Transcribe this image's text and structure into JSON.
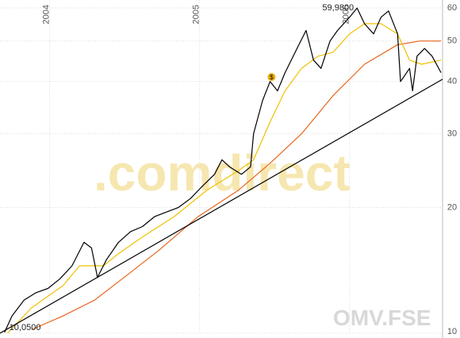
{
  "chart_data": {
    "type": "line",
    "log_y": true,
    "grid": true,
    "watermark": ".comdirect",
    "symbol": "OMV.FSE",
    "xlim": [
      2003.67,
      2006.62
    ],
    "xticks": [
      2004,
      2005,
      2006
    ],
    "ylim": [
      10,
      60
    ],
    "yticks": [
      10,
      20,
      30,
      40,
      50,
      60
    ],
    "annotations": [
      {
        "text": "59,9800",
        "x": 2006.05,
        "y": 59.98
      },
      {
        "text": "10,0500",
        "x": 2003.7,
        "y": 10.05
      },
      {
        "text": "$",
        "x": 2005.48,
        "y": 41
      }
    ],
    "series": [
      {
        "color": "#e8641a",
        "x": [
          2003.88,
          2004.09,
          2004.3,
          2004.52,
          2004.73,
          2004.99,
          2005.26,
          2005.47,
          2005.68,
          2005.89,
          2006.1,
          2006.32,
          2006.47,
          2006.61
        ],
        "values": [
          10.2,
          11,
          12,
          13.8,
          15.8,
          19,
          22,
          25.5,
          30,
          37,
          44,
          49,
          50,
          50
        ]
      },
      {
        "color": "#f0c000",
        "x": [
          2003.72,
          2003.88,
          2004.09,
          2004.2,
          2004.36,
          2004.46,
          2004.62,
          2004.83,
          2005.05,
          2005.26,
          2005.36,
          2005.47,
          2005.57,
          2005.68,
          2005.79,
          2005.89,
          2006.0,
          2006.1,
          2006.21,
          2006.32,
          2006.4,
          2006.48,
          2006.61
        ],
        "values": [
          10,
          11.5,
          13,
          14.5,
          14.5,
          15.5,
          17,
          19,
          22,
          24.5,
          26,
          32,
          38,
          43,
          46,
          47,
          52,
          55,
          55,
          52,
          45,
          44,
          45
        ]
      },
      {
        "color": "#000000",
        "x": [
          2003.7,
          2003.75,
          2003.83,
          2003.91,
          2003.99,
          2004.07,
          2004.15,
          2004.23,
          2004.28,
          2004.32,
          2004.38,
          2004.46,
          2004.54,
          2004.62,
          2004.7,
          2004.78,
          2004.86,
          2004.94,
          2005.02,
          2005.1,
          2005.15,
          2005.2,
          2005.28,
          2005.34,
          2005.36,
          2005.42,
          2005.47,
          2005.52,
          2005.57,
          2005.65,
          2005.71,
          2005.76,
          2005.81,
          2005.87,
          2005.92,
          2006.0,
          2006.05,
          2006.1,
          2006.16,
          2006.21,
          2006.26,
          2006.32,
          2006.34,
          2006.4,
          2006.42,
          2006.45,
          2006.5,
          2006.55,
          2006.61
        ],
        "values": [
          10.05,
          11,
          12,
          12.5,
          12.8,
          13.5,
          14.5,
          16.5,
          16,
          13.6,
          15,
          16.5,
          17.5,
          18,
          19,
          19.5,
          20,
          21,
          22.5,
          24,
          26,
          25,
          24,
          25,
          30,
          36,
          40,
          38,
          42,
          48,
          53,
          45,
          43,
          50,
          53,
          57,
          59.98,
          55,
          52,
          57,
          59,
          52,
          40,
          43,
          38,
          46,
          48,
          46,
          42
        ]
      },
      {
        "color": "#000000",
        "x": [
          2003.67,
          2006.62
        ],
        "values": [
          10,
          40.5
        ]
      }
    ]
  }
}
